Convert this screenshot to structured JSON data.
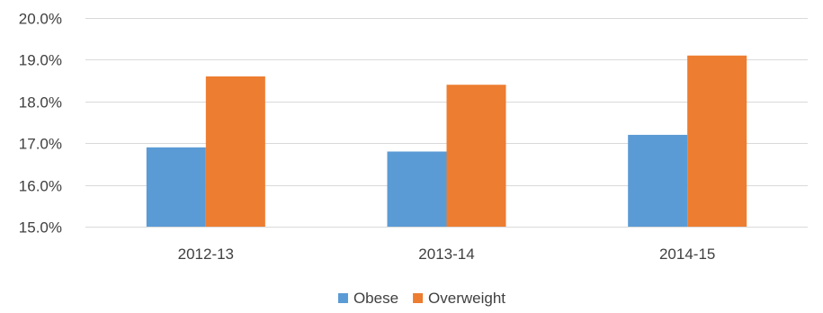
{
  "chart_data": {
    "type": "bar",
    "categories": [
      "2012-13",
      "2013-14",
      "2014-15"
    ],
    "series": [
      {
        "name": "Obese",
        "values": [
          16.9,
          16.8,
          17.2
        ],
        "color": "#5B9BD5"
      },
      {
        "name": "Overweight",
        "values": [
          18.6,
          18.4,
          19.1
        ],
        "color": "#ED7D31"
      }
    ],
    "title": "",
    "xlabel": "",
    "ylabel": "",
    "ylim": [
      15,
      20
    ],
    "yticks": [
      {
        "value": 15,
        "label": "15.0%"
      },
      {
        "value": 16,
        "label": "16.0%"
      },
      {
        "value": 17,
        "label": "17.0%"
      },
      {
        "value": 18,
        "label": "18.0%"
      },
      {
        "value": 19,
        "label": "19.0%"
      },
      {
        "value": 20,
        "label": "20.0%"
      }
    ],
    "grid": true,
    "gridColor": "#d9d9d9",
    "legend_position": "bottom"
  }
}
